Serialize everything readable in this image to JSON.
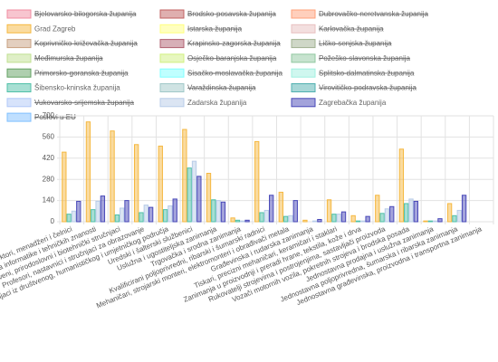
{
  "chart_data": {
    "type": "bar",
    "categories": [
      "Direktori, menadžeri i čelnici",
      "Stručnjaci za područja informatike i tehničkih znanosti",
      "Zdravstveni, prirodoslovni i biotehnički stručnjaci",
      "Profesori, nastavnici i stručnjaci za obrazovanje",
      "Stručnjaci iz društvenog, humanističkog i umjetničkog područja",
      "Uredski i šalterski službenici",
      "Uslužna i ugostiteljska zanimanja",
      "Trgovačka i srodna zanimanja",
      "Kvalificirani poljoprivredni, ribarski i šumarski radnici",
      "Mehaničari, strojarski monteri, elektromonteri i obrađivači metala",
      "Građevinska i rudarska zanimanja",
      "Tiskari, precizni mehaničari, keramičari i staklari",
      "Zanimanja u proizvodnji i preradi hrane, tekstila, kože i drva",
      "Rukovatelji strojevima i postrojenjima, sastavljači proizvoda",
      "Vozači motornih vozila, pokretnih strojeva i brodska posada",
      "Jednostavna prodajna i uslužna zanimanja",
      "Jednostavna poljoprivredna, šumarska i ribarska zanimanja",
      "Jednostavna građevinska, proizvodna i transportna zanimanja"
    ],
    "series": [
      {
        "name": "Bjelovarsko-bilogorska županija",
        "color": "#f08ca0",
        "hidden": true
      },
      {
        "name": "Brodsko-posavska županija",
        "color": "#c06060",
        "hidden": true
      },
      {
        "name": "Dubrovačko-neretvanska županija",
        "color": "#ffa07a",
        "hidden": true
      },
      {
        "name": "Grad Zagreb",
        "color": "#f5b840",
        "values": [
          460,
          660,
          600,
          510,
          500,
          610,
          320,
          25,
          530,
          195,
          10,
          145,
          40,
          175,
          480,
          5,
          120,
          0
        ]
      },
      {
        "name": "Istarska županija",
        "color": "#ffff80",
        "hidden": true
      },
      {
        "name": "Karlovačka županija",
        "color": "#e8c0c0",
        "hidden": true
      },
      {
        "name": "Koprivničko-križevačka županija",
        "color": "#c8a080",
        "hidden": true
      },
      {
        "name": "Krapinsko-zagorska županija",
        "color": "#b06070",
        "hidden": true
      },
      {
        "name": "Ličko-senjska županija",
        "color": "#a0b090",
        "hidden": true
      },
      {
        "name": "Međimurska županija",
        "color": "#c0e090",
        "hidden": true
      },
      {
        "name": "Osječko-baranjska županija",
        "color": "#d0f080",
        "hidden": true
      },
      {
        "name": "Požeško-slavonska županija",
        "color": "#90c8a0",
        "hidden": true
      },
      {
        "name": "Primorsko-goranska županija",
        "color": "#60a060",
        "hidden": true
      },
      {
        "name": "Sisačko-moslavačka županija",
        "color": "#80ffff",
        "hidden": true
      },
      {
        "name": "Splitsko-dalmatinska županija",
        "color": "#a0f0e0",
        "hidden": true
      },
      {
        "name": "Šibensko-kninska županija",
        "color": "#50c0a8",
        "values": [
          50,
          80,
          45,
          60,
          80,
          355,
          145,
          10,
          60,
          35,
          0,
          50,
          5,
          55,
          120,
          5,
          40,
          0
        ]
      },
      {
        "name": "Varaždinska županija",
        "color": "#a0c8c8",
        "hidden": true
      },
      {
        "name": "Virovitičko-podravska županija",
        "color": "#50b0b0",
        "hidden": true
      },
      {
        "name": "Vukovarsko-srijemska županija",
        "color": "#b0c8f8",
        "hidden": true
      },
      {
        "name": "Zadarska županija",
        "color": "#b8cce8",
        "values": [
          70,
          135,
          90,
          110,
          105,
          400,
          140,
          5,
          75,
          40,
          5,
          50,
          5,
          85,
          150,
          5,
          75,
          0
        ]
      },
      {
        "name": "Zagrebačka županija",
        "color": "#4848b8",
        "values": [
          135,
          170,
          140,
          95,
          150,
          300,
          130,
          10,
          175,
          140,
          15,
          65,
          35,
          100,
          135,
          20,
          175,
          0
        ]
      },
      {
        "name": "Poslovi u EU",
        "color": "#80c0ff",
        "hidden": true
      }
    ],
    "ylim": [
      0,
      700
    ],
    "yticks": [
      0,
      140,
      280,
      420,
      560,
      700
    ],
    "grid": true
  }
}
